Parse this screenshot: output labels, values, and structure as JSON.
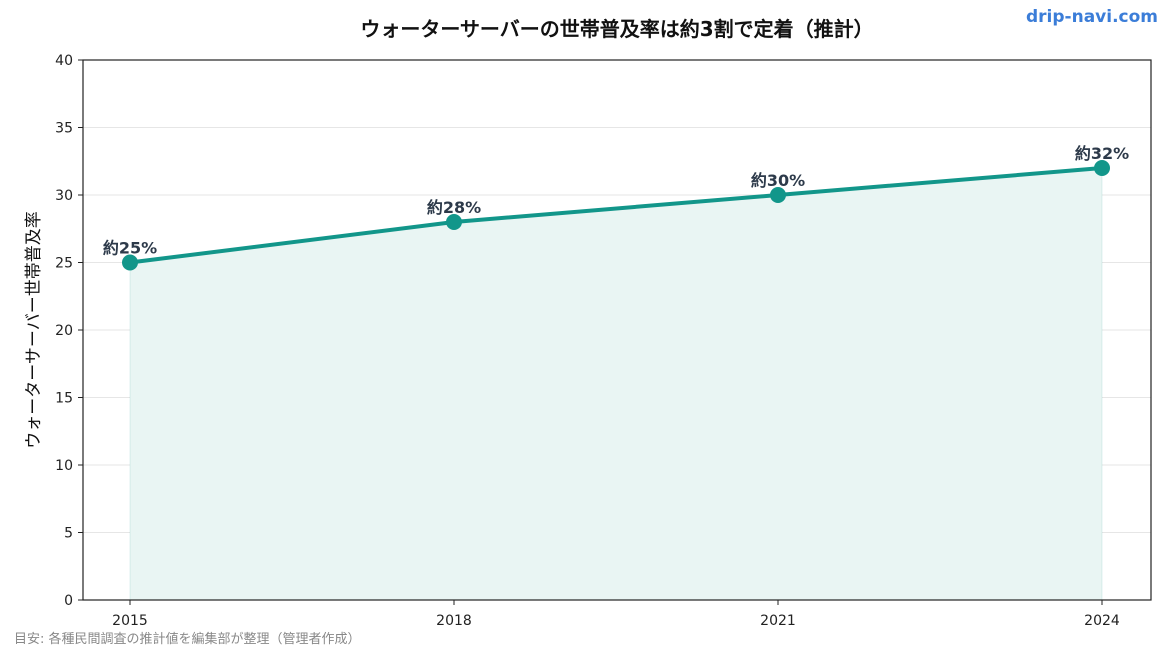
{
  "brand": {
    "text": "drip-navi.com",
    "color": "#3b7dd8"
  },
  "watermark": "drip-navi.com",
  "footnote": "目安: 各種民間調査の推計値を編集部が整理（管理者作成）",
  "colors": {
    "line": "#12968a",
    "fill": "#e9f5f3",
    "grid": "#e6e6e6",
    "label": "#2d3a4a",
    "axis": "#222222"
  },
  "chart_data": {
    "type": "line",
    "title": "ウォーターサーバーの世帯普及率は約3割で定着（推計）",
    "xlabel": "",
    "ylabel": "ウォーターサーバー世帯普及率",
    "x": [
      "2015",
      "2018",
      "2021",
      "2024"
    ],
    "series": [
      {
        "values": [
          25,
          28,
          30,
          32
        ],
        "data_labels": [
          "約25%",
          "約28%",
          "約30%",
          "約32%"
        ]
      }
    ],
    "ylim": [
      0,
      40
    ],
    "yticks": [
      0,
      5,
      10,
      15,
      20,
      25,
      30,
      35,
      40
    ],
    "grid": "horizontal",
    "area_fill": true,
    "legend": "none"
  }
}
